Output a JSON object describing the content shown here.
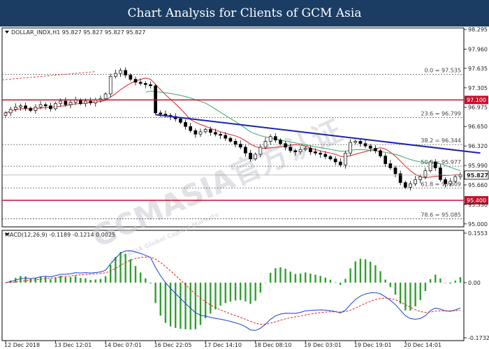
{
  "header": {
    "title": "Chart Analysis for Clients of GCM Asia"
  },
  "watermark": {
    "main": "GCMASIA官方认证",
    "sub": "GCM ASIA Global Capital Markets"
  },
  "chart_data": {
    "type": "candlestick",
    "symbol_label": "DOLLAR_INDX,H1  95.827 95.827 95.827 95.827",
    "price_axis": {
      "range": [
        94.95,
        98.32
      ],
      "ticks": [
        "98.295",
        "97.960",
        "97.635",
        "97.305",
        "96.975",
        "96.650",
        "96.320",
        "95.990",
        "95.660",
        "95.330",
        "95.000"
      ]
    },
    "current_price": "95.827",
    "horizontal_levels": [
      {
        "label": "97.100",
        "value": 97.1,
        "color": "#c8102e"
      },
      {
        "label": "95.400",
        "value": 95.4,
        "color": "#c8102e"
      }
    ],
    "fibonacci": [
      {
        "label": "0.0 = 97.535",
        "value": 97.535
      },
      {
        "label": "23.6 = 96.799",
        "value": 96.799
      },
      {
        "label": "38.2 = 96.344",
        "value": 96.344
      },
      {
        "label": "50.0 = 95.977",
        "value": 95.977
      },
      {
        "label": "61.8 = 95.609",
        "value": 95.609
      },
      {
        "label": "78.6 = 95.085",
        "value": 95.085
      }
    ],
    "trendline": {
      "from": [
        30,
        96.85
      ],
      "to": [
        95,
        96.2
      ],
      "color": "#1a23b0"
    },
    "time_labels": [
      {
        "label": "12 Dec 2018",
        "index": 0
      },
      {
        "label": "13 Dec 12:01",
        "index": 10
      },
      {
        "label": "14 Dec 07:01",
        "index": 20
      },
      {
        "label": "16 Dec 22:05",
        "index": 30
      },
      {
        "label": "17 Dec 14:10",
        "index": 40
      },
      {
        "label": "18 Dec 08:10",
        "index": 50
      },
      {
        "label": "19 Dec 03:01",
        "index": 60
      },
      {
        "label": "19 Dec 19:01",
        "index": 70
      },
      {
        "label": "20 Dec 14:01",
        "index": 80
      }
    ],
    "closes": [
      96.88,
      96.94,
      96.98,
      97.0,
      96.96,
      96.92,
      96.98,
      97.02,
      97.0,
      96.95,
      97.04,
      97.08,
      97.02,
      97.06,
      97.1,
      97.04,
      97.08,
      97.05,
      97.1,
      97.12,
      97.2,
      97.5,
      97.55,
      97.6,
      97.52,
      97.45,
      97.4,
      97.38,
      97.36,
      97.34,
      96.88,
      96.86,
      96.84,
      96.82,
      96.78,
      96.72,
      96.65,
      96.58,
      96.52,
      96.56,
      96.6,
      96.55,
      96.52,
      96.5,
      96.45,
      96.4,
      96.35,
      96.3,
      96.2,
      96.1,
      96.18,
      96.3,
      96.4,
      96.48,
      96.42,
      96.36,
      96.3,
      96.24,
      96.22,
      96.26,
      96.28,
      96.22,
      96.2,
      96.18,
      96.14,
      96.1,
      96.05,
      96.0,
      96.2,
      96.38,
      96.4,
      96.36,
      96.32,
      96.28,
      96.24,
      96.15,
      96.02,
      95.95,
      95.85,
      95.7,
      95.62,
      95.68,
      95.75,
      95.8,
      95.9,
      96.05,
      95.95,
      95.75,
      95.68,
      95.72,
      95.8,
      95.83
    ],
    "macd": {
      "label": "MACD(12,26,9) -0.1189 -0.1214 0.0025",
      "ticks": [
        "0.1553",
        "0.00",
        "-0.1732"
      ],
      "range": [
        -0.1732,
        0.1553
      ]
    }
  }
}
